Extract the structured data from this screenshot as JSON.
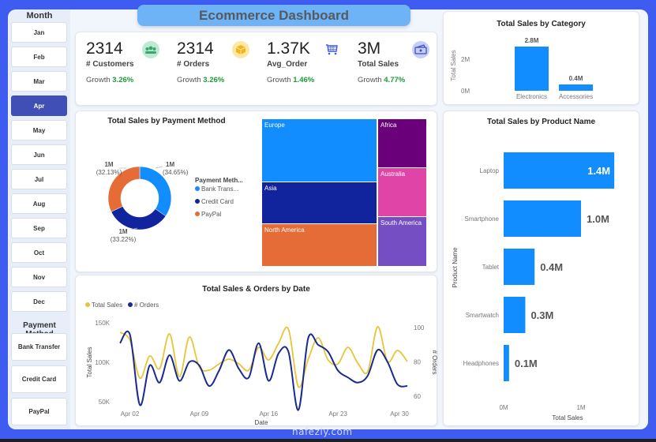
{
  "header": {
    "title": "Ecommerce Dashboard"
  },
  "sidebar": {
    "month_heading": "Month",
    "months": [
      {
        "label": "Jan",
        "active": false
      },
      {
        "label": "Feb",
        "active": false
      },
      {
        "label": "Mar",
        "active": false
      },
      {
        "label": "Apr",
        "active": true
      },
      {
        "label": "May",
        "active": false
      },
      {
        "label": "Jun",
        "active": false
      },
      {
        "label": "Jul",
        "active": false
      },
      {
        "label": "Aug",
        "active": false
      },
      {
        "label": "Sep",
        "active": false
      },
      {
        "label": "Oct",
        "active": false
      },
      {
        "label": "Nov",
        "active": false
      },
      {
        "label": "Dec",
        "active": false
      }
    ],
    "payment_heading": "Payment Method",
    "payment_methods": [
      {
        "label": "Bank Transfer"
      },
      {
        "label": "Credit Card"
      },
      {
        "label": "PayPal"
      }
    ]
  },
  "kpis": [
    {
      "value": "2314",
      "label": "# Customers",
      "growth_prefix": "Growth",
      "growth": "3.26%",
      "icon": "people-icon"
    },
    {
      "value": "2314",
      "label": "# Orders",
      "growth_prefix": "Growth",
      "growth": "3.26%",
      "icon": "box-icon"
    },
    {
      "value": "1.37K",
      "label": "Avg_Order",
      "growth_prefix": "Growth",
      "growth": "1.46%",
      "icon": "cart-icon"
    },
    {
      "value": "3M",
      "label": "Total Sales",
      "growth_prefix": "Growth",
      "growth": "4.77%",
      "icon": "cash-icon"
    }
  ],
  "colors": {
    "accent": "#118dff",
    "dark_blue": "#12239e",
    "orange": "#e66c37",
    "gold": "#e8c43a",
    "navy_line": "#1a2a8f",
    "growth_green": "#1e9a3a"
  },
  "chart_data": [
    {
      "id": "category",
      "type": "bar",
      "title": "Total Sales by Category",
      "categories": [
        "Electronics",
        "Accessories"
      ],
      "values": [
        2.8,
        0.4
      ],
      "data_labels": [
        "2.8M",
        "0.4M"
      ],
      "ylabel": "Total Sales",
      "yticks": [
        "0M",
        "2M"
      ],
      "ylim": [
        0,
        3.1
      ],
      "unit": "M"
    },
    {
      "id": "payment",
      "type": "pie",
      "title": "Total Sales by Payment Method",
      "legend_title": "Payment Meth...",
      "legend_position": "right",
      "slices": [
        {
          "name": "Bank Transfer",
          "legend": "Bank Trans...",
          "percent": 34.65,
          "value_label": "1M",
          "pct_label": "(34.65%)",
          "color": "#118dff"
        },
        {
          "name": "Credit Card",
          "legend": "Credit Card",
          "percent": 33.22,
          "value_label": "1M",
          "pct_label": "(33.22%)",
          "color": "#12239e"
        },
        {
          "name": "PayPal",
          "legend": "PayPal",
          "percent": 32.13,
          "value_label": "1M",
          "pct_label": "(32.13%)",
          "color": "#e66c37"
        }
      ]
    },
    {
      "id": "region",
      "type": "heatmap",
      "subtype": "treemap",
      "title": "",
      "items": [
        {
          "name": "Europe",
          "weight": 0.29,
          "color": "#118dff"
        },
        {
          "name": "Asia",
          "weight": 0.19,
          "color": "#12239e"
        },
        {
          "name": "North America",
          "weight": 0.19,
          "color": "#e66c37"
        },
        {
          "name": "Africa",
          "weight": 0.11,
          "color": "#6b007b"
        },
        {
          "name": "Australia",
          "weight": 0.11,
          "color": "#e044a7"
        },
        {
          "name": "South America",
          "weight": 0.11,
          "color": "#744ec2"
        }
      ]
    },
    {
      "id": "product",
      "type": "bar",
      "orientation": "horizontal",
      "title": "Total Sales by Product Name",
      "categories": [
        "Laptop",
        "Smartphone",
        "Tablet",
        "Smartwatch",
        "Headphones"
      ],
      "values": [
        1.43,
        1.0,
        0.4,
        0.28,
        0.07
      ],
      "data_labels": [
        "1.4M",
        "1.0M",
        "0.4M",
        "0.3M",
        "0.1M"
      ],
      "xlabel": "Total Sales",
      "ylabel": "Product Name",
      "xticks": [
        "0M",
        "1M"
      ],
      "xlim": [
        0,
        1.5
      ],
      "unit": "M"
    },
    {
      "id": "trend",
      "type": "line",
      "title": "Total Sales & Orders by Date",
      "xlabel": "Date",
      "ylabel": "Total Sales",
      "y2label": "# Orders",
      "legend_position": "top-left",
      "x_ticks": [
        "Apr 02",
        "Apr 09",
        "Apr 16",
        "Apr 23",
        "Apr 30"
      ],
      "x": [
        1,
        2,
        3,
        4,
        5,
        6,
        7,
        8,
        9,
        10,
        11,
        12,
        13,
        14,
        15,
        16,
        17,
        18,
        19,
        20,
        21,
        22,
        23,
        24,
        25,
        26,
        27,
        28,
        29,
        30
      ],
      "yticks": [
        "50K",
        "100K",
        "150K"
      ],
      "ylim": [
        45000,
        158000
      ],
      "y2ticks": [
        "60",
        "80",
        "100"
      ],
      "y2lim": [
        49,
        101
      ],
      "series": [
        {
          "name": "Total Sales",
          "axis": "left",
          "color": "#e8c43a",
          "values": [
            138000,
            128000,
            80000,
            108000,
            92000,
            136000,
            82000,
            132000,
            94000,
            90000,
            98000,
            104000,
            98000,
            90000,
            119000,
            103000,
            124000,
            142000,
            69000,
            104000,
            131000,
            103000,
            98000,
            119000,
            99000,
            88000,
            145000,
            101000,
            115000,
            101000
          ]
        },
        {
          "name": "# Orders",
          "axis": "right",
          "color": "#1a2a8f",
          "values": [
            91,
            96,
            55,
            78,
            68,
            84,
            69,
            80,
            78,
            66,
            75,
            87,
            76,
            71,
            91,
            69,
            85,
            86,
            52,
            94,
            90,
            86,
            75,
            71,
            68,
            72,
            87,
            80,
            67,
            66
          ]
        }
      ]
    }
  ],
  "watermark": "nafezly.com"
}
